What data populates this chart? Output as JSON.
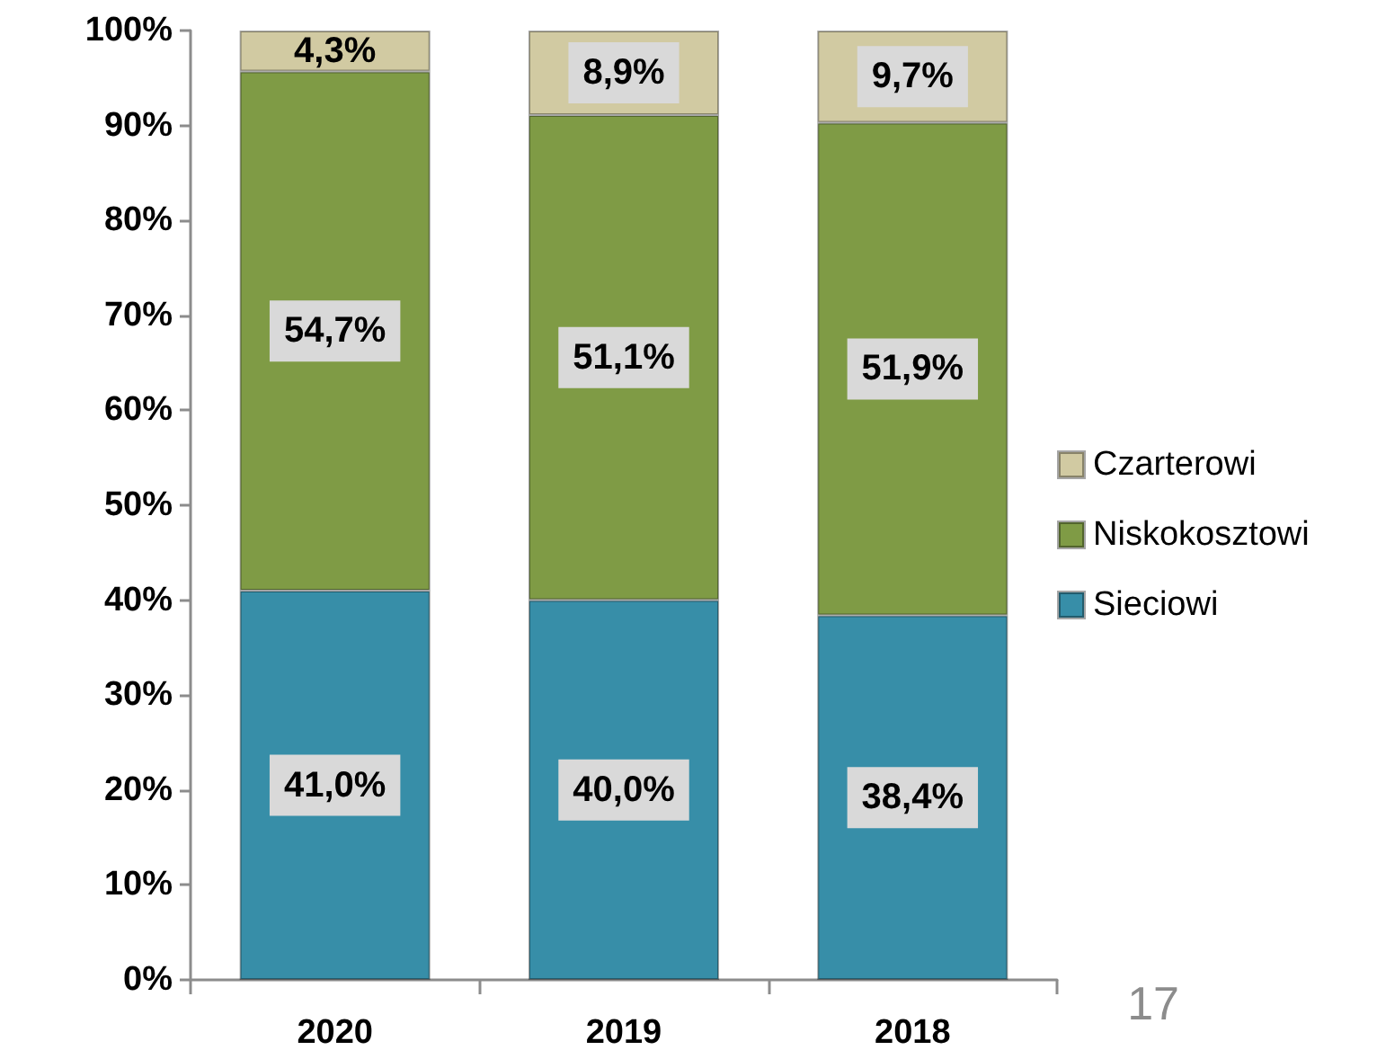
{
  "chart_data": {
    "type": "bar",
    "stacked": true,
    "categories": [
      "2020",
      "2019",
      "2018"
    ],
    "series": [
      {
        "name": "Sieciowi",
        "color": "#378ea8",
        "values": [
          41.0,
          40.0,
          38.4
        ],
        "value_labels": [
          "41,0%",
          "40,0%",
          "38,4%"
        ]
      },
      {
        "name": "Niskokosztowi",
        "color": "#7f9b45",
        "values": [
          54.7,
          51.1,
          51.9
        ],
        "value_labels": [
          "54,7%",
          "51,1%",
          "51,9%"
        ]
      },
      {
        "name": "Czarterowi",
        "color": "#d1caa2",
        "values": [
          4.3,
          8.9,
          9.7
        ],
        "value_labels": [
          "4,3%",
          "8,9%",
          "9,7%"
        ]
      }
    ],
    "ylim": [
      0,
      100
    ],
    "yticks": [
      {
        "value": 0,
        "label": "0%"
      },
      {
        "value": 10,
        "label": "10%"
      },
      {
        "value": 20,
        "label": "20%"
      },
      {
        "value": 30,
        "label": "30%"
      },
      {
        "value": 40,
        "label": "40%"
      },
      {
        "value": 50,
        "label": "50%"
      },
      {
        "value": 60,
        "label": "60%"
      },
      {
        "value": 70,
        "label": "70%"
      },
      {
        "value": 80,
        "label": "80%"
      },
      {
        "value": 90,
        "label": "90%"
      },
      {
        "value": 100,
        "label": "100%"
      }
    ],
    "legend": "right",
    "annotations": [
      "17"
    ]
  }
}
